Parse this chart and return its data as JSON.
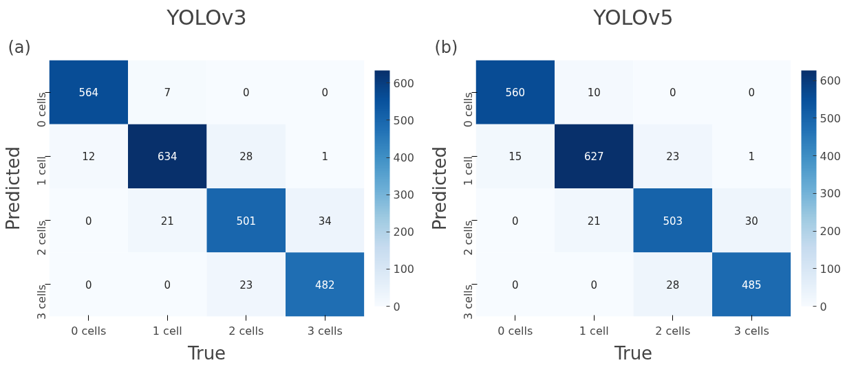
{
  "chart_data": [
    {
      "type": "heatmap",
      "title": "YOLOv3",
      "xlabel": "True",
      "ylabel": "Predicted",
      "annotations": [
        "(a)"
      ],
      "categories": [
        "0 cells",
        "1 cell",
        "2 cells",
        "3 cells"
      ],
      "y_categories": [
        "0 cells",
        "1 cell",
        "2 cells",
        "3 cells"
      ],
      "cells": [
        [
          564,
          7,
          0,
          0
        ],
        [
          12,
          634,
          28,
          1
        ],
        [
          0,
          21,
          501,
          34
        ],
        [
          0,
          0,
          23,
          482
        ]
      ],
      "clim": [
        0,
        634
      ],
      "cticks": [
        0,
        100,
        200,
        300,
        400,
        500,
        600
      ],
      "data_labels": true
    },
    {
      "type": "heatmap",
      "title": "YOLOv5",
      "xlabel": "True",
      "ylabel": "Predicted",
      "annotations": [
        "(b)"
      ],
      "categories": [
        "0 cells",
        "1 cell",
        "2 cells",
        "3 cells"
      ],
      "y_categories": [
        "0 cells",
        "1 cell",
        "2 cells",
        "3 cells"
      ],
      "cells": [
        [
          560,
          10,
          0,
          0
        ],
        [
          15,
          627,
          23,
          1
        ],
        [
          0,
          21,
          503,
          30
        ],
        [
          0,
          0,
          28,
          485
        ]
      ],
      "clim": [
        0,
        627
      ],
      "cticks": [
        0,
        100,
        200,
        300,
        400,
        500,
        600
      ],
      "data_labels": true
    }
  ]
}
